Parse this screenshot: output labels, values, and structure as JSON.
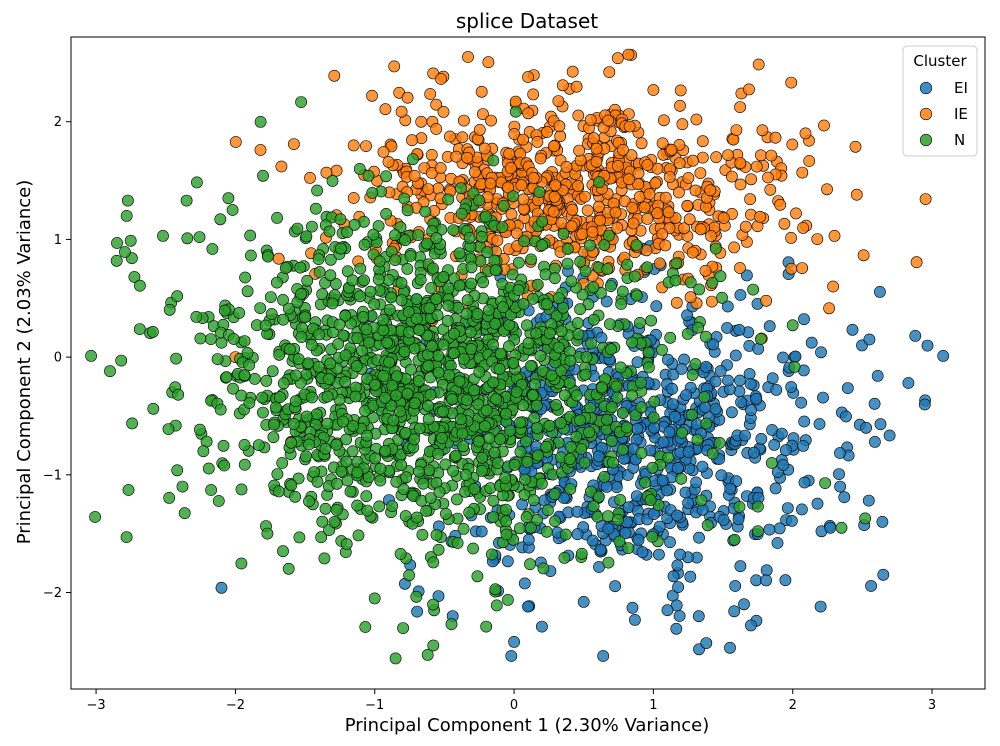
{
  "chart_data": {
    "type": "scatter",
    "title": "splice Dataset",
    "xlabel": "Principal Component 1 (2.30% Variance)",
    "ylabel": "Principal Component 2 (2.03% Variance)",
    "xlim": [
      -3.18,
      3.38
    ],
    "ylim": [
      -2.82,
      2.72
    ],
    "xticks": [
      -3,
      -2,
      -1,
      0,
      1,
      2,
      3
    ],
    "yticks": [
      -2,
      -1,
      0,
      1,
      2
    ],
    "grid": false,
    "legend": {
      "title": "Cluster",
      "placement": "top-right"
    },
    "series": [
      {
        "name": "EI",
        "color": "#1f77b4",
        "n_points": 767,
        "centroid": [
          0.85,
          -0.7
        ],
        "spread": [
          0.72,
          0.62
        ],
        "outliers": [
          [
            3.08,
            0.01
          ],
          [
            2.88,
            0.18
          ],
          [
            2.83,
            -0.22
          ],
          [
            2.65,
            -1.85
          ],
          [
            2.63,
            -0.57
          ],
          [
            2.59,
            -0.72
          ],
          [
            2.61,
            -0.16
          ],
          [
            2.55,
            0.15
          ],
          [
            2.37,
            -1.19
          ],
          [
            2.34,
            -1.1
          ],
          [
            2.27,
            -1.45
          ],
          [
            2.2,
            -2.12
          ],
          [
            1.65,
            -2.1
          ],
          [
            1.55,
            -2.47
          ],
          [
            1.7,
            -2.28
          ],
          [
            1.38,
            -2.43
          ],
          [
            0.64,
            -2.54
          ],
          [
            -0.02,
            -2.54
          ],
          [
            0.0,
            -2.42
          ],
          [
            -2.1,
            -1.96
          ],
          [
            0.2,
            -2.29
          ],
          [
            0.1,
            -2.12
          ],
          [
            0.5,
            -2.08
          ],
          [
            0.85,
            -2.13
          ],
          [
            1.58,
            -2.16
          ]
        ]
      },
      {
        "name": "IE",
        "color": "#ff7f0e",
        "n_points": 768,
        "centroid": [
          0.45,
          1.38
        ],
        "spread": [
          0.78,
          0.42
        ],
        "outliers": [
          [
            -0.86,
            2.47
          ],
          [
            -1.29,
            2.39
          ],
          [
            0.35,
            2.31
          ],
          [
            0.1,
            2.38
          ],
          [
            -1.02,
            2.22
          ],
          [
            -1.58,
            1.81
          ],
          [
            -1.67,
            1.62
          ],
          [
            -1.82,
            1.76
          ],
          [
            2.46,
            1.38
          ],
          [
            2.29,
            0.6
          ],
          [
            2.3,
            1.03
          ],
          [
            1.99,
            0.75
          ],
          [
            -1.6,
            -0.72
          ],
          [
            -2.0,
            0.0
          ],
          [
            1.0,
            2.27
          ]
        ]
      },
      {
        "name": "N",
        "color": "#2ca02c",
        "n_points": 1655,
        "centroid": [
          -0.55,
          -0.2
        ],
        "spread": [
          0.82,
          0.68
        ],
        "outliers": [
          [
            -2.9,
            -0.12
          ],
          [
            -2.85,
            0.97
          ],
          [
            -2.78,
            1.2
          ],
          [
            -2.82,
            -0.03
          ],
          [
            -2.52,
            1.03
          ],
          [
            -2.38,
            -1.1
          ],
          [
            -2.35,
            1.33
          ],
          [
            -2.05,
            1.35
          ],
          [
            -2.02,
            1.25
          ],
          [
            -0.85,
            -2.56
          ],
          [
            -0.62,
            -2.53
          ],
          [
            -0.58,
            -2.45
          ],
          [
            -1.0,
            -2.05
          ],
          [
            2.35,
            -1.45
          ],
          [
            2.0,
            0.27
          ],
          [
            2.52,
            -1.37
          ],
          [
            1.75,
            -1.48
          ],
          [
            1.75,
            -1.27
          ],
          [
            1.85,
            -0.9
          ],
          [
            -0.2,
            -2.29
          ]
        ]
      }
    ]
  }
}
